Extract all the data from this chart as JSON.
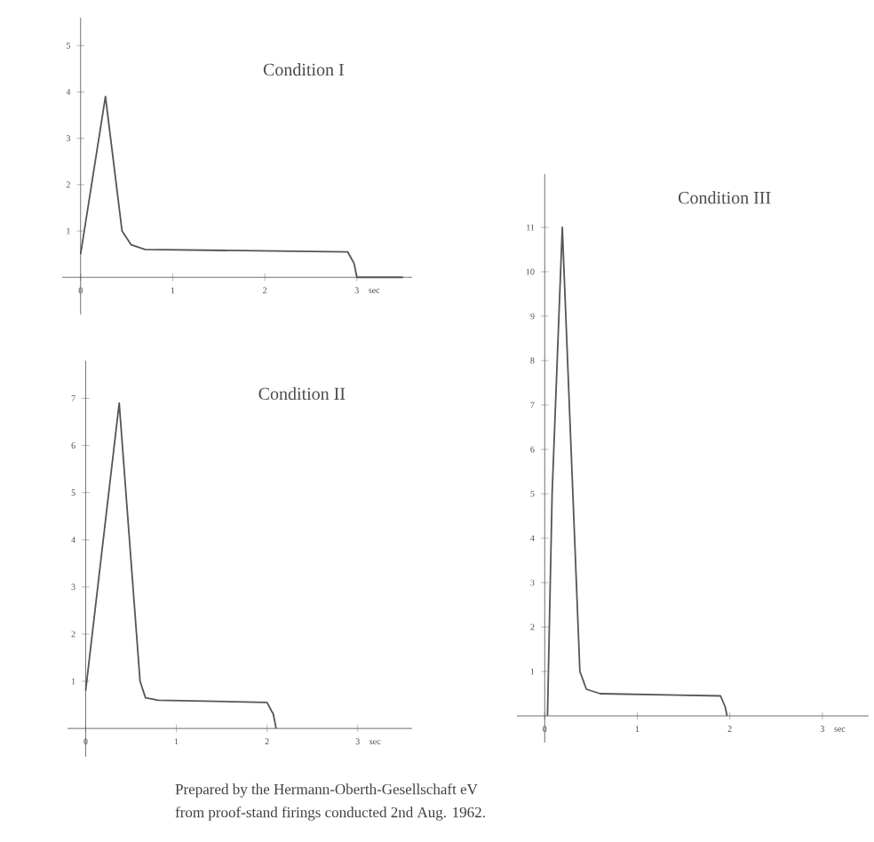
{
  "chart_data": [
    {
      "type": "line",
      "title": "Condition I",
      "xlabel": "sec",
      "color": "#555555",
      "x": [
        0,
        0.27,
        0.45,
        0.55,
        0.7,
        2.9,
        2.97,
        3.0,
        3.5
      ],
      "values": [
        0.5,
        3.9,
        1.0,
        0.7,
        0.6,
        0.55,
        0.3,
        0,
        0
      ],
      "xlim": [
        -0.2,
        3.6
      ],
      "ylim": [
        -0.8,
        5.6
      ],
      "xticks": [
        0,
        1,
        2,
        3
      ],
      "yticks": [
        1,
        2,
        3,
        4,
        5
      ]
    },
    {
      "type": "line",
      "title": "Condition II",
      "xlabel": "sec",
      "color": "#555555",
      "x": [
        0,
        0.37,
        0.6,
        0.66,
        0.8,
        2.0,
        2.07,
        2.1
      ],
      "values": [
        0.8,
        6.9,
        1.0,
        0.65,
        0.6,
        0.55,
        0.3,
        0
      ],
      "xlim": [
        -0.2,
        3.6
      ],
      "ylim": [
        -0.6,
        7.8
      ],
      "xticks": [
        0,
        1,
        2,
        3
      ],
      "yticks": [
        1,
        2,
        3,
        4,
        5,
        6,
        7
      ],
      "annotations": [
        "Prepared by the Hermann-Oberth-Gesellschaft eV",
        "from proof-stand firings conducted 2nd Aug. 1962."
      ]
    },
    {
      "type": "line",
      "title": "Condition III",
      "xlabel": "sec",
      "color": "#555555",
      "x": [
        0.03,
        0.08,
        0.19,
        0.38,
        0.45,
        0.6,
        1.9,
        1.95,
        1.97
      ],
      "values": [
        0,
        5,
        11,
        1.0,
        0.6,
        0.5,
        0.45,
        0.2,
        0
      ],
      "xlim": [
        -0.3,
        3.5
      ],
      "ylim": [
        -0.6,
        12.2
      ],
      "xticks": [
        0,
        1,
        2,
        3
      ],
      "yticks": [
        1,
        2,
        3,
        4,
        5,
        6,
        7,
        8,
        9,
        10,
        11
      ]
    }
  ]
}
